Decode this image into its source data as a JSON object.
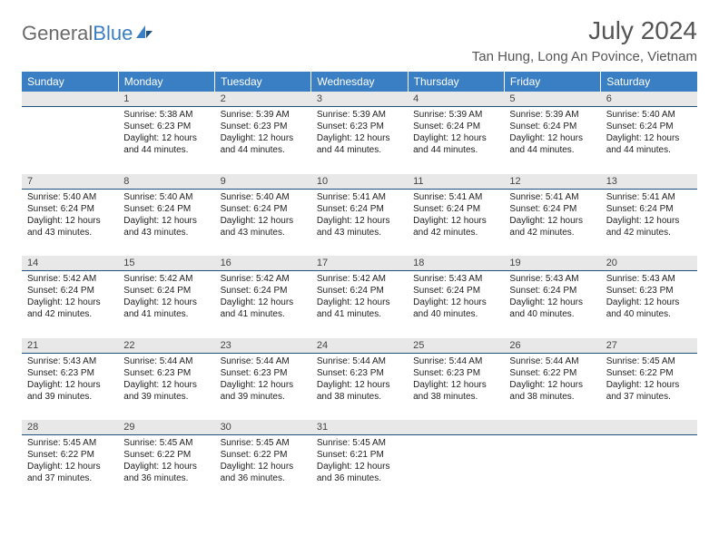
{
  "logo": {
    "general": "General",
    "blue": "Blue"
  },
  "title": "July 2024",
  "location": "Tan Hung, Long An Povince, Vietnam",
  "header_bg": "#3a7fc4",
  "header_fg": "#ffffff",
  "daynum_bg": "#e8e8e8",
  "sep_color": "#205080",
  "weekdays": [
    "Sunday",
    "Monday",
    "Tuesday",
    "Wednesday",
    "Thursday",
    "Friday",
    "Saturday"
  ],
  "weeks": [
    [
      {
        "n": "",
        "lines": []
      },
      {
        "n": "1",
        "lines": [
          "Sunrise: 5:38 AM",
          "Sunset: 6:23 PM",
          "Daylight: 12 hours and 44 minutes."
        ]
      },
      {
        "n": "2",
        "lines": [
          "Sunrise: 5:39 AM",
          "Sunset: 6:23 PM",
          "Daylight: 12 hours and 44 minutes."
        ]
      },
      {
        "n": "3",
        "lines": [
          "Sunrise: 5:39 AM",
          "Sunset: 6:23 PM",
          "Daylight: 12 hours and 44 minutes."
        ]
      },
      {
        "n": "4",
        "lines": [
          "Sunrise: 5:39 AM",
          "Sunset: 6:24 PM",
          "Daylight: 12 hours and 44 minutes."
        ]
      },
      {
        "n": "5",
        "lines": [
          "Sunrise: 5:39 AM",
          "Sunset: 6:24 PM",
          "Daylight: 12 hours and 44 minutes."
        ]
      },
      {
        "n": "6",
        "lines": [
          "Sunrise: 5:40 AM",
          "Sunset: 6:24 PM",
          "Daylight: 12 hours and 44 minutes."
        ]
      }
    ],
    [
      {
        "n": "7",
        "lines": [
          "Sunrise: 5:40 AM",
          "Sunset: 6:24 PM",
          "Daylight: 12 hours and 43 minutes."
        ]
      },
      {
        "n": "8",
        "lines": [
          "Sunrise: 5:40 AM",
          "Sunset: 6:24 PM",
          "Daylight: 12 hours and 43 minutes."
        ]
      },
      {
        "n": "9",
        "lines": [
          "Sunrise: 5:40 AM",
          "Sunset: 6:24 PM",
          "Daylight: 12 hours and 43 minutes."
        ]
      },
      {
        "n": "10",
        "lines": [
          "Sunrise: 5:41 AM",
          "Sunset: 6:24 PM",
          "Daylight: 12 hours and 43 minutes."
        ]
      },
      {
        "n": "11",
        "lines": [
          "Sunrise: 5:41 AM",
          "Sunset: 6:24 PM",
          "Daylight: 12 hours and 42 minutes."
        ]
      },
      {
        "n": "12",
        "lines": [
          "Sunrise: 5:41 AM",
          "Sunset: 6:24 PM",
          "Daylight: 12 hours and 42 minutes."
        ]
      },
      {
        "n": "13",
        "lines": [
          "Sunrise: 5:41 AM",
          "Sunset: 6:24 PM",
          "Daylight: 12 hours and 42 minutes."
        ]
      }
    ],
    [
      {
        "n": "14",
        "lines": [
          "Sunrise: 5:42 AM",
          "Sunset: 6:24 PM",
          "Daylight: 12 hours and 42 minutes."
        ]
      },
      {
        "n": "15",
        "lines": [
          "Sunrise: 5:42 AM",
          "Sunset: 6:24 PM",
          "Daylight: 12 hours and 41 minutes."
        ]
      },
      {
        "n": "16",
        "lines": [
          "Sunrise: 5:42 AM",
          "Sunset: 6:24 PM",
          "Daylight: 12 hours and 41 minutes."
        ]
      },
      {
        "n": "17",
        "lines": [
          "Sunrise: 5:42 AM",
          "Sunset: 6:24 PM",
          "Daylight: 12 hours and 41 minutes."
        ]
      },
      {
        "n": "18",
        "lines": [
          "Sunrise: 5:43 AM",
          "Sunset: 6:24 PM",
          "Daylight: 12 hours and 40 minutes."
        ]
      },
      {
        "n": "19",
        "lines": [
          "Sunrise: 5:43 AM",
          "Sunset: 6:24 PM",
          "Daylight: 12 hours and 40 minutes."
        ]
      },
      {
        "n": "20",
        "lines": [
          "Sunrise: 5:43 AM",
          "Sunset: 6:23 PM",
          "Daylight: 12 hours and 40 minutes."
        ]
      }
    ],
    [
      {
        "n": "21",
        "lines": [
          "Sunrise: 5:43 AM",
          "Sunset: 6:23 PM",
          "Daylight: 12 hours and 39 minutes."
        ]
      },
      {
        "n": "22",
        "lines": [
          "Sunrise: 5:44 AM",
          "Sunset: 6:23 PM",
          "Daylight: 12 hours and 39 minutes."
        ]
      },
      {
        "n": "23",
        "lines": [
          "Sunrise: 5:44 AM",
          "Sunset: 6:23 PM",
          "Daylight: 12 hours and 39 minutes."
        ]
      },
      {
        "n": "24",
        "lines": [
          "Sunrise: 5:44 AM",
          "Sunset: 6:23 PM",
          "Daylight: 12 hours and 38 minutes."
        ]
      },
      {
        "n": "25",
        "lines": [
          "Sunrise: 5:44 AM",
          "Sunset: 6:23 PM",
          "Daylight: 12 hours and 38 minutes."
        ]
      },
      {
        "n": "26",
        "lines": [
          "Sunrise: 5:44 AM",
          "Sunset: 6:22 PM",
          "Daylight: 12 hours and 38 minutes."
        ]
      },
      {
        "n": "27",
        "lines": [
          "Sunrise: 5:45 AM",
          "Sunset: 6:22 PM",
          "Daylight: 12 hours and 37 minutes."
        ]
      }
    ],
    [
      {
        "n": "28",
        "lines": [
          "Sunrise: 5:45 AM",
          "Sunset: 6:22 PM",
          "Daylight: 12 hours and 37 minutes."
        ]
      },
      {
        "n": "29",
        "lines": [
          "Sunrise: 5:45 AM",
          "Sunset: 6:22 PM",
          "Daylight: 12 hours and 36 minutes."
        ]
      },
      {
        "n": "30",
        "lines": [
          "Sunrise: 5:45 AM",
          "Sunset: 6:22 PM",
          "Daylight: 12 hours and 36 minutes."
        ]
      },
      {
        "n": "31",
        "lines": [
          "Sunrise: 5:45 AM",
          "Sunset: 6:21 PM",
          "Daylight: 12 hours and 36 minutes."
        ]
      },
      {
        "n": "",
        "lines": []
      },
      {
        "n": "",
        "lines": []
      },
      {
        "n": "",
        "lines": []
      }
    ]
  ]
}
